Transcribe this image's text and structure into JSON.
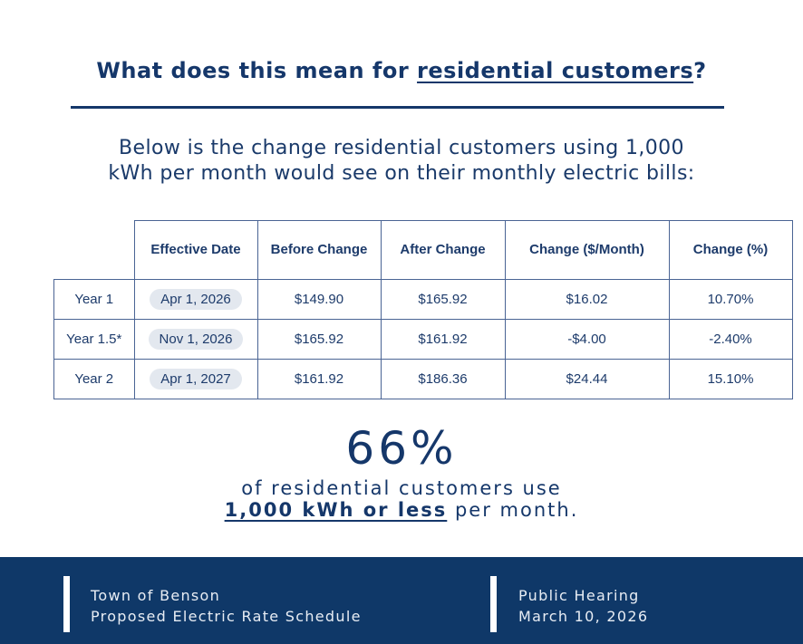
{
  "heading": {
    "prefix": "What does this mean for ",
    "emphasis": "residential customers",
    "suffix": "?"
  },
  "subtitle": {
    "line1": "Below is the change residential customers using 1,000",
    "line2": "kWh per month would see on their monthly electric bills:"
  },
  "table": {
    "headers": [
      "Effective Date",
      "Before Change",
      "After Change",
      "Change ($/Month)",
      "Change (%)"
    ],
    "rows": [
      {
        "label": "Year 1",
        "date": "Apr 1, 2026",
        "before": "$149.90",
        "after": "$165.92",
        "change": "$16.02",
        "pct": "10.70%"
      },
      {
        "label": "Year 1.5*",
        "date": "Nov 1, 2026",
        "before": "$165.92",
        "after": "$161.92",
        "change": "-$4.00",
        "pct": "-2.40%"
      },
      {
        "label": "Year 2",
        "date": "Apr 1, 2027",
        "before": "$161.92",
        "after": "$186.36",
        "change": "$24.44",
        "pct": "15.10%"
      }
    ]
  },
  "stat": {
    "value": "66%",
    "line1": "of residential customers use",
    "emphasis": "1,000 kWh or less",
    "suffix": " per month."
  },
  "footer": {
    "left1": "Town of Benson",
    "left2": "Proposed Electric Rate Schedule",
    "right1": "Public Hearing",
    "right2": "March 10, 2026"
  }
}
